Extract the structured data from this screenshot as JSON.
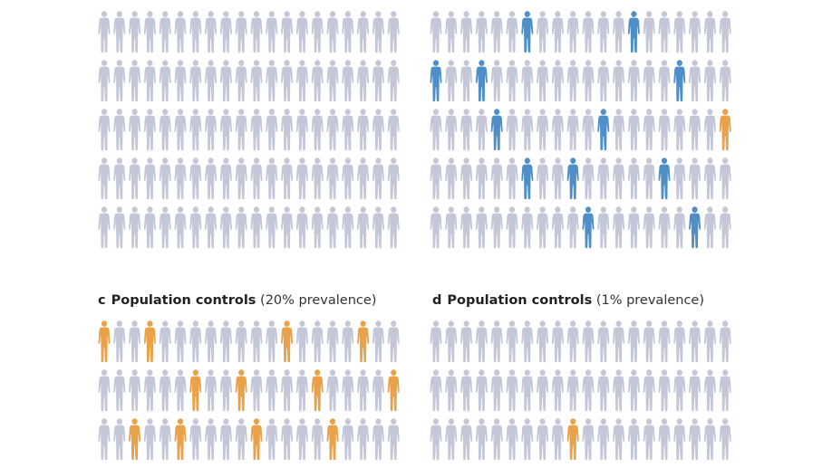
{
  "colors": {
    "neutral": "#c3c7d8",
    "case": "#4f8fc7",
    "control_affected": "#e9a24a"
  },
  "panels": [
    {
      "id": "a",
      "letter": "",
      "name": "",
      "prevalence": "",
      "rows": 5,
      "cols": 20,
      "highlights": []
    },
    {
      "id": "b",
      "letter": "",
      "name": "",
      "prevalence": "",
      "rows": 5,
      "cols": 20,
      "highlights": [
        {
          "row": 0,
          "col": 6,
          "color": "case"
        },
        {
          "row": 0,
          "col": 13,
          "color": "case"
        },
        {
          "row": 1,
          "col": 0,
          "color": "case"
        },
        {
          "row": 1,
          "col": 3,
          "color": "case"
        },
        {
          "row": 1,
          "col": 16,
          "color": "case"
        },
        {
          "row": 2,
          "col": 4,
          "color": "case"
        },
        {
          "row": 2,
          "col": 11,
          "color": "case"
        },
        {
          "row": 2,
          "col": 19,
          "color": "control_affected"
        },
        {
          "row": 3,
          "col": 6,
          "color": "case"
        },
        {
          "row": 3,
          "col": 9,
          "color": "case"
        },
        {
          "row": 3,
          "col": 15,
          "color": "case"
        },
        {
          "row": 4,
          "col": 10,
          "color": "case"
        },
        {
          "row": 4,
          "col": 17,
          "color": "case"
        }
      ]
    },
    {
      "id": "c",
      "letter": "c",
      "name": "Population controls",
      "prevalence": "(20% prevalence)",
      "rows": 3,
      "cols": 20,
      "highlights": [
        {
          "row": 0,
          "col": 0,
          "color": "control_affected"
        },
        {
          "row": 0,
          "col": 3,
          "color": "control_affected"
        },
        {
          "row": 0,
          "col": 12,
          "color": "control_affected"
        },
        {
          "row": 0,
          "col": 17,
          "color": "control_affected"
        },
        {
          "row": 1,
          "col": 6,
          "color": "control_affected"
        },
        {
          "row": 1,
          "col": 9,
          "color": "control_affected"
        },
        {
          "row": 1,
          "col": 14,
          "color": "control_affected"
        },
        {
          "row": 1,
          "col": 19,
          "color": "control_affected"
        },
        {
          "row": 2,
          "col": 2,
          "color": "control_affected"
        },
        {
          "row": 2,
          "col": 5,
          "color": "control_affected"
        },
        {
          "row": 2,
          "col": 10,
          "color": "control_affected"
        },
        {
          "row": 2,
          "col": 15,
          "color": "control_affected"
        }
      ]
    },
    {
      "id": "d",
      "letter": "d",
      "name": "Population controls",
      "prevalence": "(1% prevalence)",
      "rows": 3,
      "cols": 20,
      "highlights": [
        {
          "row": 2,
          "col": 9,
          "color": "control_affected"
        }
      ]
    }
  ]
}
